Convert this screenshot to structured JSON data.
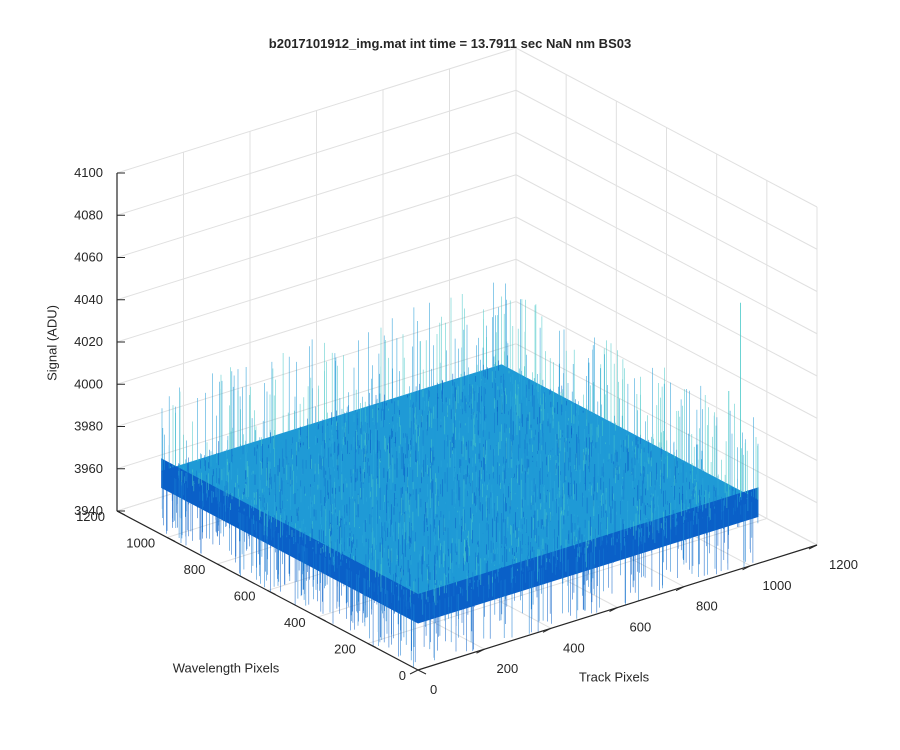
{
  "chart_data": {
    "type": "surface",
    "title": "b2017101912_img.mat int time = 13.7911 sec  NaN nm BS03",
    "xlabel": "Wavelength Pixels",
    "ylabel": "Track Pixels",
    "zlabel": "Signal (ADU)",
    "xlim": [
      0,
      1200
    ],
    "ylim": [
      0,
      1200
    ],
    "zlim": [
      3940,
      4100
    ],
    "xticks": [
      "0",
      "200",
      "400",
      "600",
      "800",
      "1000",
      "1200"
    ],
    "yticks": [
      "0",
      "200",
      "400",
      "600",
      "800",
      "1000",
      "1200"
    ],
    "zticks": [
      "3940",
      "3960",
      "3980",
      "4000",
      "4020",
      "4040",
      "4060",
      "4080",
      "4100"
    ],
    "surface": {
      "x_extent": [
        0,
        1024
      ],
      "y_extent": [
        0,
        1024
      ],
      "mean_signal": 3970,
      "noise_range": [
        3940,
        4000
      ]
    },
    "grid": true,
    "colors": {
      "surface_main": "#1f9ad6",
      "surface_dark": "#0a60c8",
      "surface_light": "#48c8c8",
      "axis": "#262626",
      "grid": "#e0e0e0"
    }
  }
}
